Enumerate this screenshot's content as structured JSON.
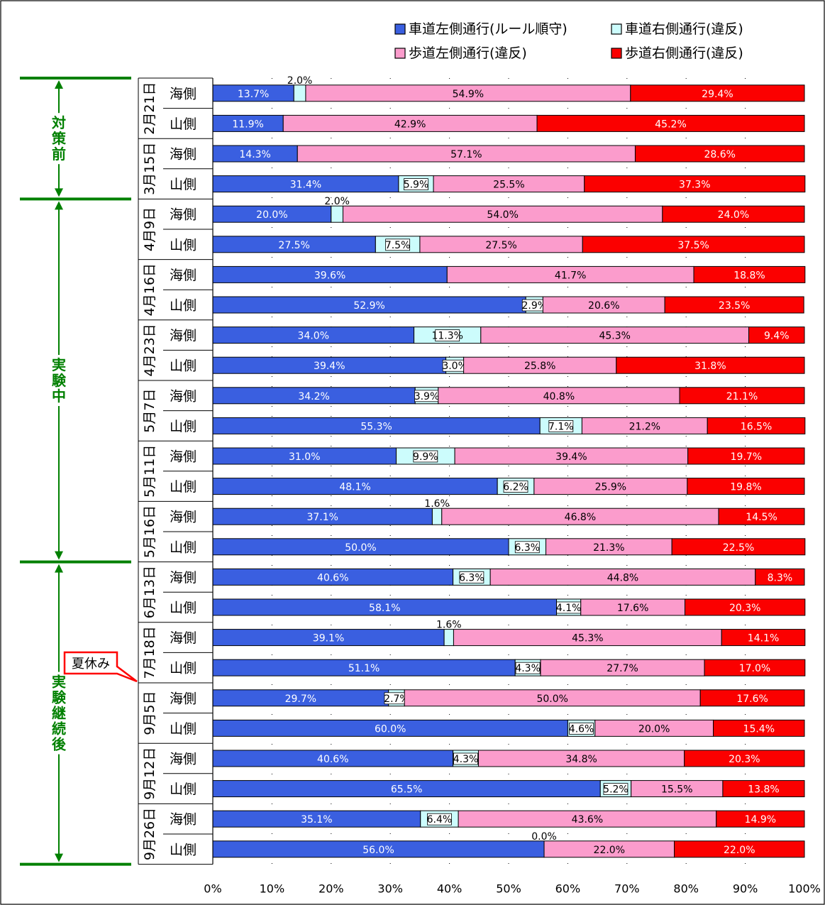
{
  "chart_data": {
    "type": "bar",
    "orientation": "horizontal",
    "stacked": true,
    "percent": true,
    "xlim": [
      0,
      100
    ],
    "xticks": [
      "0%",
      "10%",
      "20%",
      "30%",
      "40%",
      "50%",
      "60%",
      "70%",
      "80%",
      "90%",
      "100%"
    ],
    "legend_position": "top-right",
    "grid": "vertical dashed",
    "series": [
      {
        "name": "車道左側通行(ルール順守)",
        "color": "#3a5fe0"
      },
      {
        "name": "車道右側通行(違反)",
        "color": "#ccfcfc"
      },
      {
        "name": "歩道左側通行(違反)",
        "color": "#fb9ccc"
      },
      {
        "name": "歩道右側通行(違反)",
        "color": "#fb0000"
      }
    ],
    "dates": [
      {
        "label": "2月21日",
        "rows": [
          {
            "side": "海側",
            "values": [
              13.7,
              2.0,
              54.9,
              29.4
            ]
          },
          {
            "side": "山側",
            "values": [
              11.9,
              0,
              42.9,
              45.2
            ]
          }
        ]
      },
      {
        "label": "3月15日",
        "rows": [
          {
            "side": "海側",
            "values": [
              14.3,
              0,
              57.1,
              28.6
            ]
          },
          {
            "side": "山側",
            "values": [
              31.4,
              5.9,
              25.5,
              37.3
            ]
          }
        ]
      },
      {
        "label": "4月9日",
        "rows": [
          {
            "side": "海側",
            "values": [
              20.0,
              2.0,
              54.0,
              24.0
            ]
          },
          {
            "side": "山側",
            "values": [
              27.5,
              7.5,
              27.5,
              37.5
            ]
          }
        ]
      },
      {
        "label": "4月16日",
        "rows": [
          {
            "side": "海側",
            "values": [
              39.6,
              0,
              41.7,
              18.8
            ]
          },
          {
            "side": "山側",
            "values": [
              52.9,
              2.9,
              20.6,
              23.5
            ]
          }
        ]
      },
      {
        "label": "4月23日",
        "rows": [
          {
            "side": "海側",
            "values": [
              34.0,
              11.3,
              45.3,
              9.4
            ]
          },
          {
            "side": "山側",
            "values": [
              39.4,
              3.0,
              25.8,
              31.8
            ]
          }
        ]
      },
      {
        "label": "5月7日",
        "rows": [
          {
            "side": "海側",
            "values": [
              34.2,
              3.9,
              40.8,
              21.1
            ]
          },
          {
            "side": "山側",
            "values": [
              55.3,
              7.1,
              21.2,
              16.5
            ]
          }
        ]
      },
      {
        "label": "5月11日",
        "rows": [
          {
            "side": "海側",
            "values": [
              31.0,
              9.9,
              39.4,
              19.7
            ]
          },
          {
            "side": "山側",
            "values": [
              48.1,
              6.2,
              25.9,
              19.8
            ]
          }
        ]
      },
      {
        "label": "5月16日",
        "rows": [
          {
            "side": "海側",
            "values": [
              37.1,
              1.6,
              46.8,
              14.5
            ]
          },
          {
            "side": "山側",
            "values": [
              50.0,
              6.3,
              21.3,
              22.5
            ]
          }
        ]
      },
      {
        "label": "6月13日",
        "rows": [
          {
            "side": "海側",
            "values": [
              40.6,
              6.3,
              44.8,
              8.3
            ]
          },
          {
            "side": "山側",
            "values": [
              58.1,
              4.1,
              17.6,
              20.3
            ]
          }
        ]
      },
      {
        "label": "7月18日",
        "rows": [
          {
            "side": "海側",
            "values": [
              39.1,
              1.6,
              45.3,
              14.1
            ]
          },
          {
            "side": "山側",
            "values": [
              51.1,
              4.3,
              27.7,
              17.0
            ]
          }
        ]
      },
      {
        "label": "9月5日",
        "rows": [
          {
            "side": "海側",
            "values": [
              29.7,
              2.7,
              50.0,
              17.6
            ]
          },
          {
            "side": "山側",
            "values": [
              60.0,
              4.6,
              20.0,
              15.4
            ]
          }
        ]
      },
      {
        "label": "9月12日",
        "rows": [
          {
            "side": "海側",
            "values": [
              40.6,
              4.3,
              34.8,
              20.3
            ]
          },
          {
            "side": "山側",
            "values": [
              65.5,
              5.2,
              15.5,
              13.8
            ]
          }
        ]
      },
      {
        "label": "9月26日",
        "rows": [
          {
            "side": "海側",
            "values": [
              35.1,
              6.4,
              43.6,
              14.9
            ]
          },
          {
            "side": "山側",
            "values": [
              56.0,
              0.0,
              22.0,
              22.0
            ]
          }
        ]
      }
    ],
    "value_labels": [
      [
        "13.7%",
        "2.0%",
        "54.9%",
        "29.4%"
      ],
      [
        "11.9%",
        "",
        "42.9%",
        "45.2%"
      ],
      [
        "14.3%",
        "",
        "57.1%",
        "28.6%"
      ],
      [
        "31.4%",
        "5.9%",
        "25.5%",
        "37.3%"
      ],
      [
        "20.0%",
        "2.0%",
        "54.0%",
        "24.0%"
      ],
      [
        "27.5%",
        "7.5%",
        "27.5%",
        "37.5%"
      ],
      [
        "39.6%",
        "",
        "41.7%",
        "18.8%"
      ],
      [
        "52.9%",
        "2.9%",
        "20.6%",
        "23.5%"
      ],
      [
        "34.0%",
        "11.3%",
        "45.3%",
        "9.4%"
      ],
      [
        "39.4%",
        "3.0%",
        "25.8%",
        "31.8%"
      ],
      [
        "34.2%",
        "3.9%",
        "40.8%",
        "21.1%"
      ],
      [
        "55.3%",
        "7.1%",
        "21.2%",
        "16.5%"
      ],
      [
        "31.0%",
        "9.9%",
        "39.4%",
        "19.7%"
      ],
      [
        "48.1%",
        "6.2%",
        "25.9%",
        "19.8%"
      ],
      [
        "37.1%",
        "1.6%",
        "46.8%",
        "14.5%"
      ],
      [
        "50.0%",
        "6.3%",
        "21.3%",
        "22.5%"
      ],
      [
        "40.6%",
        "6.3%",
        "44.8%",
        "8.3%"
      ],
      [
        "58.1%",
        "4.1%",
        "17.6%",
        "20.3%"
      ],
      [
        "39.1%",
        "1.6%",
        "45.3%",
        "14.1%"
      ],
      [
        "51.1%",
        "4.3%",
        "27.7%",
        "17.0%"
      ],
      [
        "29.7%",
        "2.7%",
        "50.0%",
        "17.6%"
      ],
      [
        "60.0%",
        "4.6%",
        "20.0%",
        "15.4%"
      ],
      [
        "40.6%",
        "4.3%",
        "34.8%",
        "20.3%"
      ],
      [
        "65.5%",
        "5.2%",
        "15.5%",
        "13.8%"
      ],
      [
        "35.1%",
        "6.4%",
        "43.6%",
        "14.9%"
      ],
      [
        "56.0%",
        "0.0%",
        "22.0%",
        "22.0%"
      ]
    ],
    "periods": [
      {
        "label": "対策前",
        "from_date": 0,
        "to_date": 1
      },
      {
        "label": "実験中",
        "from_date": 2,
        "to_date": 7
      },
      {
        "label": "実験継続後",
        "from_date": 8,
        "to_date": 12
      }
    ],
    "annotations": [
      {
        "text": "夏休み",
        "between_dates": [
          9,
          10
        ]
      }
    ],
    "colors": {
      "period_arrow": "#008000",
      "callout_border": "#ff0000"
    }
  }
}
